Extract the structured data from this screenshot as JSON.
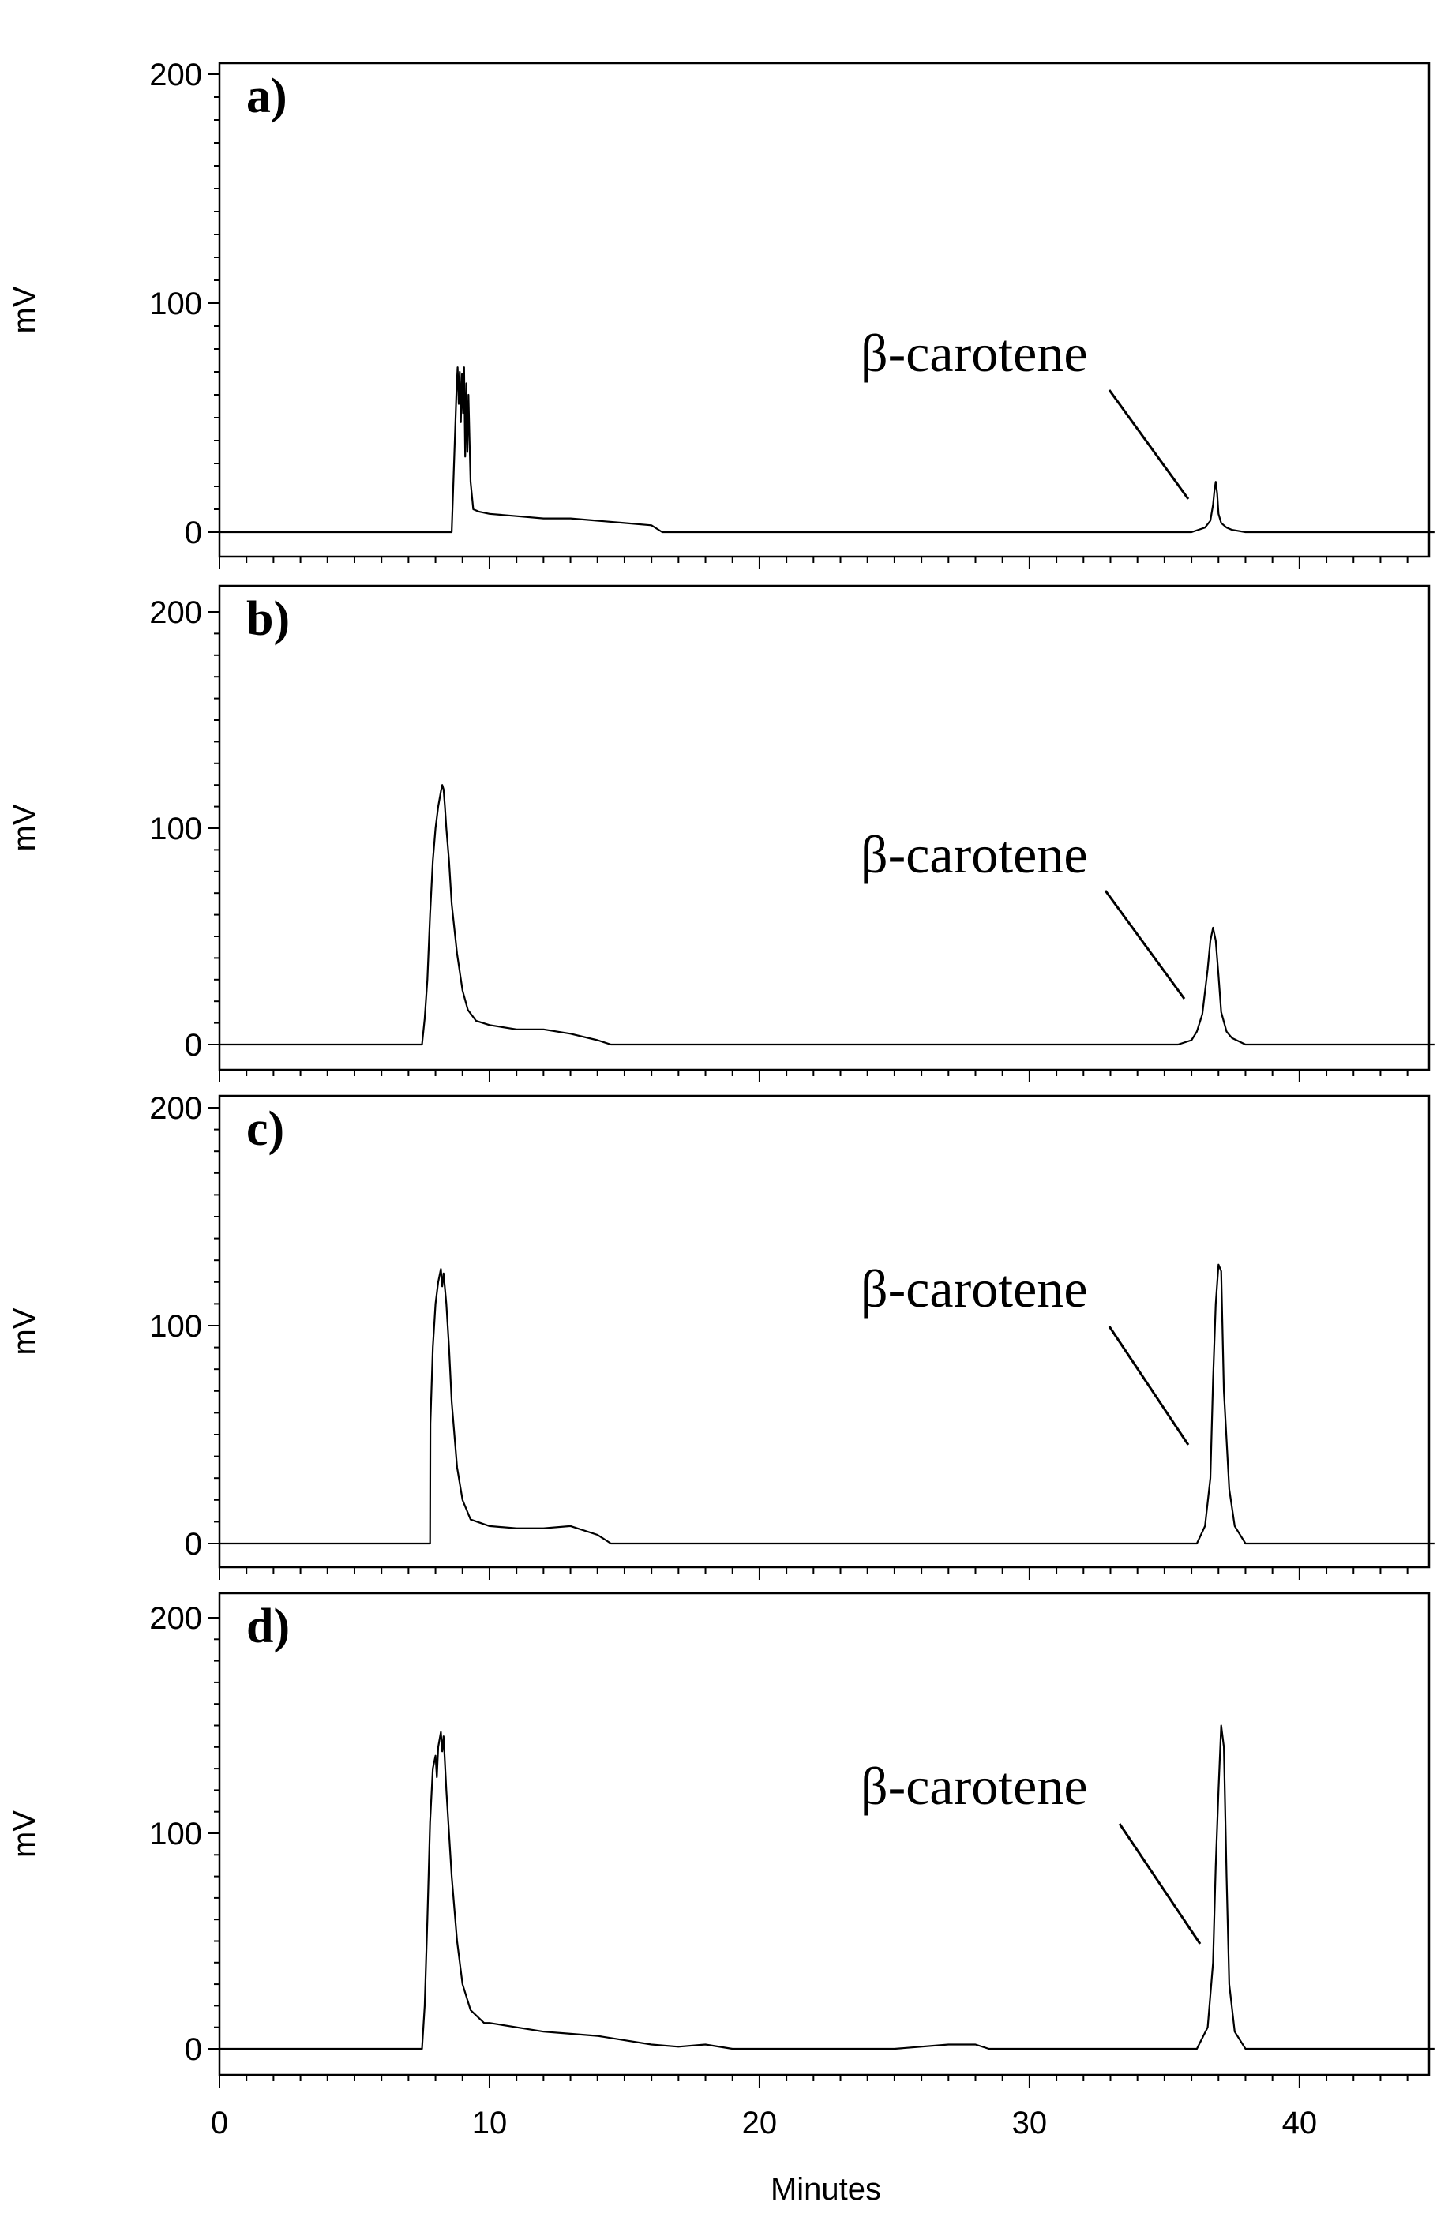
{
  "chart_data": [
    {
      "type": "line",
      "panel_label": "a)",
      "ylabel": "mV",
      "ylim": [
        -10,
        210
      ],
      "yticks": [
        0,
        100,
        200
      ],
      "annotation": {
        "text": "β-carotene",
        "peak_x": 36.9
      },
      "series": [
        {
          "x": [
            0,
            8.6,
            8.78,
            8.82,
            8.86,
            8.9,
            8.94,
            8.98,
            9.02,
            9.06,
            9.1,
            9.14,
            9.18,
            9.22,
            9.26,
            9.3,
            9.4,
            9.6,
            10,
            11,
            12,
            13,
            14,
            15,
            16,
            16.4,
            20,
            30,
            36,
            36.5,
            36.7,
            36.8,
            36.85,
            36.9,
            36.95,
            37.0,
            37.1,
            37.3,
            37.5,
            38,
            45
          ],
          "y": [
            0,
            0,
            62,
            72,
            56,
            70,
            48,
            69,
            52,
            72,
            33,
            65,
            35,
            60,
            40,
            22,
            10,
            9,
            8,
            7,
            6,
            6,
            5,
            4,
            3,
            0,
            0,
            0,
            0,
            2,
            5,
            12,
            18,
            22,
            17,
            8,
            4,
            2,
            1,
            0,
            0
          ]
        }
      ]
    },
    {
      "type": "line",
      "panel_label": "b)",
      "ylabel": "mV",
      "ylim": [
        -10,
        210
      ],
      "yticks": [
        0,
        100,
        200
      ],
      "annotation": {
        "text": "β-carotene",
        "peak_x": 36.8
      },
      "series": [
        {
          "x": [
            0,
            7.5,
            7.6,
            7.7,
            7.8,
            7.9,
            8.0,
            8.1,
            8.2,
            8.25,
            8.3,
            8.35,
            8.4,
            8.5,
            8.6,
            8.8,
            9.0,
            9.2,
            9.5,
            10,
            11,
            12,
            13,
            14,
            14.5,
            20,
            30,
            35.5,
            36,
            36.2,
            36.4,
            36.6,
            36.7,
            36.8,
            36.9,
            37.0,
            37.1,
            37.3,
            37.5,
            38,
            45
          ],
          "y": [
            0,
            0,
            12,
            30,
            60,
            85,
            100,
            110,
            117,
            120,
            118,
            110,
            100,
            85,
            65,
            42,
            25,
            16,
            11,
            9,
            7,
            7,
            5,
            2,
            0,
            0,
            0,
            0,
            2,
            6,
            14,
            35,
            48,
            54,
            48,
            32,
            15,
            6,
            3,
            0,
            0
          ]
        }
      ]
    },
    {
      "type": "line",
      "panel_label": "c)",
      "ylabel": "mV",
      "ylim": [
        -10,
        210
      ],
      "yticks": [
        0,
        100,
        200
      ],
      "annotation": {
        "text": "β-carotene",
        "peak_x": 37.0
      },
      "series": [
        {
          "x": [
            0,
            7.8,
            7.81,
            7.9,
            8.0,
            8.1,
            8.2,
            8.25,
            8.3,
            8.4,
            8.5,
            8.6,
            8.8,
            9.0,
            9.3,
            10,
            11,
            12,
            13,
            14,
            14.5,
            20,
            30,
            36.2,
            36.5,
            36.7,
            36.8,
            36.9,
            37.0,
            37.1,
            37.2,
            37.4,
            37.6,
            38,
            45
          ],
          "y": [
            0,
            0,
            55,
            90,
            110,
            120,
            126,
            118,
            124,
            110,
            90,
            65,
            35,
            20,
            11,
            8,
            7,
            7,
            8,
            4,
            0,
            0,
            0,
            0,
            8,
            30,
            75,
            110,
            128,
            125,
            70,
            25,
            8,
            0,
            0
          ]
        }
      ]
    },
    {
      "type": "line",
      "panel_label": "d)",
      "ylabel": "mV",
      "xlabel": "Minutes",
      "xlim": [
        0,
        44.8
      ],
      "xticks": [
        0,
        10,
        20,
        30,
        40
      ],
      "ylim": [
        -10,
        210
      ],
      "yticks": [
        0,
        100,
        200
      ],
      "annotation": {
        "text": "β-carotene",
        "peak_x": 37.1
      },
      "series": [
        {
          "x": [
            0,
            7.5,
            7.6,
            7.7,
            7.8,
            7.9,
            8.0,
            8.05,
            8.1,
            8.2,
            8.25,
            8.3,
            8.4,
            8.5,
            8.6,
            8.8,
            9.0,
            9.3,
            9.8,
            10,
            11,
            12,
            13,
            14,
            15,
            16,
            17,
            18,
            19,
            20,
            25,
            27,
            28,
            28.5,
            30,
            36.2,
            36.6,
            36.8,
            36.9,
            37.0,
            37.1,
            37.2,
            37.3,
            37.4,
            37.6,
            38,
            45
          ],
          "y": [
            0,
            0,
            20,
            60,
            105,
            130,
            136,
            126,
            140,
            147,
            138,
            145,
            120,
            100,
            80,
            50,
            30,
            18,
            12,
            12,
            10,
            8,
            7,
            6,
            4,
            2,
            1,
            2,
            0,
            0,
            0,
            2,
            2,
            0,
            0,
            0,
            10,
            40,
            85,
            120,
            150,
            140,
            80,
            30,
            8,
            0,
            0
          ]
        }
      ]
    }
  ]
}
